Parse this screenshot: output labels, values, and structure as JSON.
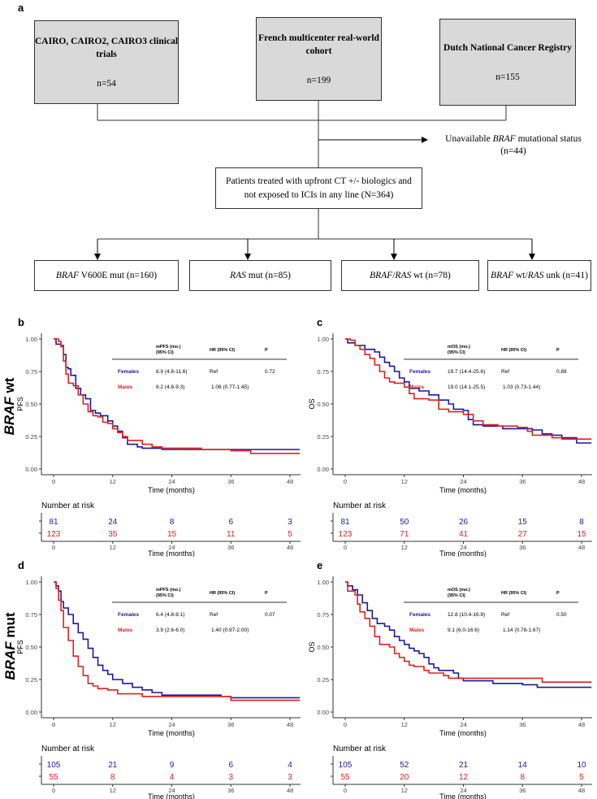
{
  "flowchart": {
    "letter": "a",
    "sources": [
      {
        "title": "CAIRO, CAIRO2, CAIRO3 clinical trials",
        "n": "n=54"
      },
      {
        "title": "French multicenter real-world cohort",
        "n": "n=199"
      },
      {
        "title": "Dutch National Cancer Registry",
        "n": "n=155"
      }
    ],
    "excluded": {
      "pre": "Unavailable ",
      "italic": "BRAF",
      "post": " mutational status",
      "n": "(n=44)"
    },
    "center": "Patients treated with upfront CT +/- biologics and not exposed to ICIs in any line (N=364)",
    "groups": [
      {
        "italic": "BRAF",
        "rest": " V600E mut (n=160)"
      },
      {
        "italic": "RAS",
        "rest": " mut (n=85)"
      },
      {
        "italic": "BRAF",
        "rest": "/",
        "italic2": "RAS",
        "rest2": " wt (n=78)"
      },
      {
        "italic": "BRAF",
        "rest": " wt/",
        "italic2": "RAS",
        "rest2": " unk (n=41)"
      }
    ]
  },
  "row_labels": [
    {
      "italic": "BRAF",
      "rest": " wt"
    },
    {
      "italic": "BRAF",
      "rest": " mut"
    }
  ],
  "colors": {
    "females": "#1a1a9c",
    "males": "#e02020"
  },
  "chart_data": [
    {
      "letter": "b",
      "type": "line",
      "ylabel": "PFS",
      "xlabel": "Time (months)",
      "xlim": [
        0,
        50
      ],
      "ylim": [
        0,
        1
      ],
      "xticks": [
        0,
        12,
        24,
        36,
        48
      ],
      "yticks": [
        "0.00",
        "0.25",
        "0.50",
        "0.75",
        "1.00"
      ],
      "table": {
        "headers": [
          "mPFS (mo.)",
          "(95% CI)",
          "HR (95% CI)",
          "P"
        ],
        "rows": [
          {
            "group": "Females",
            "median": "6.9 (4.8-11.6)",
            "hr": "Ref",
            "p": "0.72"
          },
          {
            "group": "Males",
            "median": "6.2 (4.8-9.3)",
            "hr": "1.06 (0.77-1.45)",
            "p": ""
          }
        ]
      },
      "risk_title": "Number at risk",
      "risk": {
        "Females": [
          81,
          24,
          8,
          6,
          3
        ],
        "Males": [
          123,
          35,
          15,
          11,
          5
        ]
      },
      "series": [
        {
          "name": "Females",
          "points": [
            [
              0,
              1
            ],
            [
              0.5,
              0.96
            ],
            [
              1.5,
              0.95
            ],
            [
              2,
              0.88
            ],
            [
              2.5,
              0.78
            ],
            [
              3,
              0.77
            ],
            [
              3.5,
              0.72
            ],
            [
              4.5,
              0.62
            ],
            [
              5.5,
              0.57
            ],
            [
              6.5,
              0.54
            ],
            [
              7.5,
              0.45
            ],
            [
              8.5,
              0.43
            ],
            [
              9.5,
              0.41
            ],
            [
              11,
              0.37
            ],
            [
              12,
              0.33
            ],
            [
              13,
              0.29
            ],
            [
              14,
              0.24
            ],
            [
              15,
              0.19
            ],
            [
              17,
              0.17
            ],
            [
              18,
              0.16
            ],
            [
              22,
              0.15
            ],
            [
              50,
              0.15
            ]
          ]
        },
        {
          "name": "Males",
          "points": [
            [
              0,
              1
            ],
            [
              1,
              0.98
            ],
            [
              1.5,
              0.94
            ],
            [
              2,
              0.83
            ],
            [
              2.5,
              0.73
            ],
            [
              3,
              0.66
            ],
            [
              4,
              0.64
            ],
            [
              5,
              0.57
            ],
            [
              6,
              0.5
            ],
            [
              7,
              0.44
            ],
            [
              8,
              0.41
            ],
            [
              9,
              0.4
            ],
            [
              10,
              0.36
            ],
            [
              11,
              0.35
            ],
            [
              12,
              0.31
            ],
            [
              13,
              0.28
            ],
            [
              14,
              0.25
            ],
            [
              15,
              0.22
            ],
            [
              18,
              0.19
            ],
            [
              20,
              0.17
            ],
            [
              22,
              0.16
            ],
            [
              30,
              0.15
            ],
            [
              36,
              0.14
            ],
            [
              40,
              0.12
            ],
            [
              50,
              0.12
            ]
          ]
        }
      ]
    },
    {
      "letter": "c",
      "type": "line",
      "ylabel": "OS",
      "xlabel": "Time (months)",
      "xlim": [
        0,
        50
      ],
      "ylim": [
        0,
        1
      ],
      "xticks": [
        0,
        12,
        24,
        36,
        48
      ],
      "yticks": [
        "0.00",
        "0.25",
        "0.50",
        "0.75",
        "1.00"
      ],
      "table": {
        "headers": [
          "mOS (mo.)",
          "(95% CI)",
          "HR (95% CI)",
          "P"
        ],
        "rows": [
          {
            "group": "Females",
            "median": "19.7 (14.4-25.6)",
            "hr": "Ref",
            "p": "0.88"
          },
          {
            "group": "Males",
            "median": "19.0 (14.1-25.5)",
            "hr": "1.03 (0.73-1.44)",
            "p": ""
          }
        ]
      },
      "risk_title": "Number at risk",
      "risk": {
        "Females": [
          81,
          50,
          26,
          15,
          8
        ],
        "Males": [
          123,
          71,
          41,
          27,
          15
        ]
      },
      "series": [
        {
          "name": "Females",
          "points": [
            [
              0,
              1
            ],
            [
              0.5,
              0.97
            ],
            [
              2,
              0.95
            ],
            [
              4,
              0.92
            ],
            [
              6,
              0.9
            ],
            [
              7,
              0.86
            ],
            [
              8,
              0.82
            ],
            [
              9,
              0.79
            ],
            [
              10,
              0.75
            ],
            [
              11,
              0.7
            ],
            [
              12,
              0.67
            ],
            [
              13,
              0.62
            ],
            [
              15,
              0.6
            ],
            [
              17,
              0.57
            ],
            [
              19,
              0.53
            ],
            [
              21,
              0.5
            ],
            [
              22,
              0.46
            ],
            [
              24,
              0.45
            ],
            [
              25,
              0.38
            ],
            [
              26,
              0.34
            ],
            [
              28,
              0.33
            ],
            [
              32,
              0.31
            ],
            [
              38,
              0.3
            ],
            [
              40,
              0.27
            ],
            [
              42,
              0.26
            ],
            [
              44,
              0.24
            ],
            [
              47,
              0.2
            ],
            [
              50,
              0.2
            ]
          ]
        },
        {
          "name": "Males",
          "points": [
            [
              0,
              1
            ],
            [
              1,
              0.99
            ],
            [
              2,
              0.95
            ],
            [
              3,
              0.92
            ],
            [
              4,
              0.88
            ],
            [
              5,
              0.85
            ],
            [
              6,
              0.8
            ],
            [
              7,
              0.75
            ],
            [
              8,
              0.7
            ],
            [
              9,
              0.67
            ],
            [
              10,
              0.66
            ],
            [
              12,
              0.63
            ],
            [
              13,
              0.58
            ],
            [
              14,
              0.54
            ],
            [
              17,
              0.53
            ],
            [
              19,
              0.46
            ],
            [
              21,
              0.44
            ],
            [
              24,
              0.42
            ],
            [
              26,
              0.37
            ],
            [
              28,
              0.34
            ],
            [
              31,
              0.33
            ],
            [
              35,
              0.32
            ],
            [
              37,
              0.29
            ],
            [
              38,
              0.26
            ],
            [
              42,
              0.24
            ],
            [
              44,
              0.23
            ],
            [
              50,
              0.23
            ]
          ]
        }
      ]
    },
    {
      "letter": "d",
      "type": "line",
      "ylabel": "PFS",
      "xlabel": "Time (months)",
      "xlim": [
        0,
        50
      ],
      "ylim": [
        0,
        1
      ],
      "xticks": [
        0,
        12,
        24,
        36,
        48
      ],
      "yticks": [
        "0.00",
        "0.25",
        "0.50",
        "0.75",
        "1.00"
      ],
      "table": {
        "headers": [
          "mPFS (mo.)",
          "(95% CI)",
          "HR (95% CI)",
          "P"
        ],
        "rows": [
          {
            "group": "Females",
            "median": "6.4 (4.8-8.1)",
            "hr": "Ref",
            "p": "0.07"
          },
          {
            "group": "Males",
            "median": "3.9 (2.6-6.0)",
            "hr": "1.40 (0.97-2.00)",
            "p": ""
          }
        ]
      },
      "risk_title": "Number at risk",
      "risk": {
        "Females": [
          105,
          21,
          9,
          6,
          4
        ],
        "Males": [
          55,
          8,
          4,
          3,
          3
        ]
      },
      "series": [
        {
          "name": "Females",
          "points": [
            [
              0,
              1
            ],
            [
              0.5,
              0.97
            ],
            [
              1,
              0.93
            ],
            [
              1.5,
              0.85
            ],
            [
              2,
              0.8
            ],
            [
              3,
              0.75
            ],
            [
              4,
              0.68
            ],
            [
              5,
              0.61
            ],
            [
              6,
              0.56
            ],
            [
              7,
              0.49
            ],
            [
              8,
              0.42
            ],
            [
              9,
              0.36
            ],
            [
              10,
              0.32
            ],
            [
              11,
              0.29
            ],
            [
              12,
              0.25
            ],
            [
              14,
              0.22
            ],
            [
              16,
              0.19
            ],
            [
              18,
              0.17
            ],
            [
              20,
              0.15
            ],
            [
              22,
              0.13
            ],
            [
              34,
              0.12
            ],
            [
              36,
              0.11
            ],
            [
              50,
              0.11
            ]
          ]
        },
        {
          "name": "Males",
          "points": [
            [
              0,
              1
            ],
            [
              0.5,
              0.95
            ],
            [
              1,
              0.86
            ],
            [
              1.5,
              0.78
            ],
            [
              2,
              0.65
            ],
            [
              3,
              0.55
            ],
            [
              4,
              0.43
            ],
            [
              5,
              0.35
            ],
            [
              6,
              0.28
            ],
            [
              7,
              0.22
            ],
            [
              8,
              0.2
            ],
            [
              9,
              0.18
            ],
            [
              11,
              0.17
            ],
            [
              13,
              0.14
            ],
            [
              18,
              0.12
            ],
            [
              36,
              0.09
            ],
            [
              50,
              0.09
            ]
          ]
        }
      ]
    },
    {
      "letter": "e",
      "type": "line",
      "ylabel": "OS",
      "xlabel": "Time (months)",
      "xlim": [
        0,
        50
      ],
      "ylim": [
        0,
        1
      ],
      "xticks": [
        0,
        12,
        24,
        36,
        48
      ],
      "yticks": [
        "0.00",
        "0.25",
        "0.50",
        "0.75",
        "1.00"
      ],
      "table": {
        "headers": [
          "mOS (mo.)",
          "(95% CI)",
          "HR (95% CI)",
          "P"
        ],
        "rows": [
          {
            "group": "Females",
            "median": "12.8 (10.4-16.8)",
            "hr": "Ref",
            "p": "0.50"
          },
          {
            "group": "Males",
            "median": "9.1 (6.0-16.6)",
            "hr": "1.14 (0.78-1.67)",
            "p": ""
          }
        ]
      },
      "risk_title": "Number at risk",
      "risk": {
        "Females": [
          105,
          52,
          21,
          14,
          10
        ],
        "Males": [
          55,
          20,
          12,
          8,
          5
        ]
      },
      "series": [
        {
          "name": "Females",
          "points": [
            [
              0,
              1
            ],
            [
              0.5,
              0.97
            ],
            [
              1.5,
              0.94
            ],
            [
              2.5,
              0.9
            ],
            [
              3.5,
              0.84
            ],
            [
              4.5,
              0.78
            ],
            [
              5.5,
              0.72
            ],
            [
              6.5,
              0.68
            ],
            [
              8,
              0.66
            ],
            [
              9,
              0.63
            ],
            [
              10,
              0.58
            ],
            [
              11,
              0.55
            ],
            [
              12,
              0.52
            ],
            [
              13,
              0.49
            ],
            [
              14,
              0.47
            ],
            [
              15,
              0.45
            ],
            [
              16,
              0.42
            ],
            [
              17,
              0.37
            ],
            [
              18,
              0.34
            ],
            [
              19,
              0.32
            ],
            [
              22,
              0.3
            ],
            [
              23,
              0.26
            ],
            [
              24,
              0.24
            ],
            [
              30,
              0.22
            ],
            [
              36,
              0.21
            ],
            [
              39,
              0.19
            ],
            [
              50,
              0.19
            ]
          ]
        },
        {
          "name": "Males",
          "points": [
            [
              0,
              1
            ],
            [
              0.5,
              0.93
            ],
            [
              2,
              0.9
            ],
            [
              2.5,
              0.83
            ],
            [
              3,
              0.77
            ],
            [
              4,
              0.72
            ],
            [
              5,
              0.66
            ],
            [
              6,
              0.58
            ],
            [
              7,
              0.52
            ],
            [
              9,
              0.5
            ],
            [
              10,
              0.45
            ],
            [
              11,
              0.42
            ],
            [
              12,
              0.39
            ],
            [
              13,
              0.36
            ],
            [
              14,
              0.35
            ],
            [
              16,
              0.32
            ],
            [
              17,
              0.3
            ],
            [
              20,
              0.28
            ],
            [
              21,
              0.26
            ],
            [
              40,
              0.23
            ],
            [
              50,
              0.23
            ]
          ]
        }
      ]
    }
  ]
}
